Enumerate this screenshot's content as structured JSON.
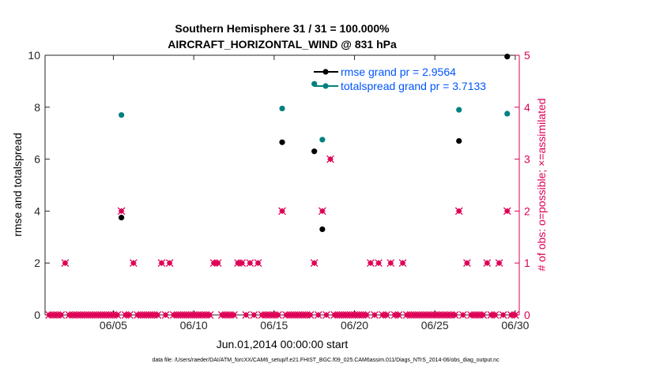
{
  "chart_data": {
    "type": "scatter",
    "title_line1": "Southern Hemisphere 31 / 31 = 100.000%",
    "title_line2": "AIRCRAFT_HORIZONTAL_WIND @ 831 hPa",
    "xlabel": "Jun.01,2014 00:00:00 start",
    "ylabel_left": "rmse and totalspread",
    "ylabel_right": "# of obs: o=possible; ×=assimilated",
    "xlim": [
      0.75,
      30.25
    ],
    "ylim_left": [
      0,
      10
    ],
    "ylim_right": [
      0,
      5
    ],
    "x_ticks": [
      5,
      10,
      15,
      20,
      25,
      30
    ],
    "x_tick_labels": [
      "06/05",
      "06/10",
      "06/15",
      "06/20",
      "06/25",
      "06/30"
    ],
    "y_ticks_left": [
      0,
      2,
      4,
      6,
      8,
      10
    ],
    "y_ticks_right": [
      0,
      1,
      2,
      3,
      4,
      5
    ],
    "colors": {
      "rmse": "#000000",
      "totalspread": "#008080",
      "obs": "#dd0055",
      "legend_text": "#0055ff"
    },
    "legend": [
      {
        "name": "rmse grand pr = 2.9564",
        "color": "#000000"
      },
      {
        "name": "totalspread grand pr = 3.7133",
        "color": "#008080"
      }
    ],
    "series": [
      {
        "name": "rmse",
        "axis": "left",
        "x": [
          5.5,
          15.5,
          17.5,
          18.0,
          26.5,
          29.5
        ],
        "y": [
          3.75,
          6.65,
          6.3,
          3.3,
          6.7,
          9.95
        ]
      },
      {
        "name": "totalspread",
        "axis": "left",
        "x": [
          5.5,
          15.5,
          17.5,
          18.0,
          26.5,
          29.5
        ],
        "y": [
          7.7,
          7.95,
          8.9,
          6.75,
          7.9,
          7.75
        ]
      },
      {
        "name": "obs_count",
        "axis": "right",
        "x": [
          1.0,
          1.25,
          1.5,
          1.75,
          2.0,
          2.25,
          2.5,
          2.75,
          3.0,
          3.25,
          3.5,
          3.75,
          4.0,
          4.25,
          4.5,
          4.75,
          5.0,
          5.25,
          5.5,
          5.75,
          6.0,
          6.25,
          6.5,
          6.75,
          7.0,
          7.25,
          7.5,
          7.75,
          8.0,
          8.25,
          8.5,
          8.75,
          9.0,
          9.25,
          9.5,
          9.75,
          10.0,
          10.25,
          10.5,
          10.75,
          11.0,
          11.25,
          11.5,
          11.75,
          12.0,
          12.25,
          12.5,
          12.75,
          13.0,
          13.25,
          13.5,
          13.75,
          14.0,
          14.25,
          14.5,
          14.75,
          15.0,
          15.25,
          15.5,
          15.75,
          16.0,
          16.25,
          16.5,
          16.75,
          17.0,
          17.25,
          17.5,
          17.75,
          18.0,
          18.25,
          18.5,
          18.75,
          19.0,
          19.25,
          19.5,
          19.75,
          20.0,
          20.25,
          20.5,
          20.75,
          21.0,
          21.25,
          21.5,
          21.75,
          22.0,
          22.25,
          22.5,
          22.75,
          23.0,
          23.25,
          23.5,
          23.75,
          24.0,
          24.25,
          24.5,
          24.75,
          25.0,
          25.25,
          25.5,
          25.75,
          26.0,
          26.25,
          26.5,
          26.75,
          27.0,
          27.25,
          27.5,
          27.75,
          28.0,
          28.25,
          28.5,
          28.75,
          29.0,
          29.25,
          29.5,
          29.75,
          30.0
        ],
        "y": [
          0,
          0,
          0,
          0,
          1,
          0,
          0,
          0,
          0,
          0,
          0,
          0,
          0,
          0,
          0,
          0,
          0,
          0,
          2,
          0,
          0,
          1,
          0,
          0,
          0,
          0,
          0,
          0,
          1,
          0,
          1,
          0,
          0,
          0,
          0,
          0,
          0,
          0,
          0,
          0,
          0,
          1,
          1,
          0,
          0,
          0,
          0,
          1,
          1,
          0,
          1,
          0,
          1,
          0,
          0,
          0,
          0,
          0,
          2,
          0,
          0,
          0,
          0,
          0,
          0,
          0,
          1,
          0,
          2,
          0,
          3,
          0,
          0,
          0,
          0,
          0,
          0,
          0,
          0,
          0,
          1,
          0,
          1,
          0,
          0,
          1,
          0,
          0,
          1,
          0,
          0,
          0,
          0,
          0,
          0,
          0,
          0,
          0,
          0,
          0,
          0,
          0,
          2,
          0,
          1,
          0,
          0,
          0,
          0,
          1,
          0,
          0,
          1,
          0,
          2,
          0,
          0
        ]
      }
    ],
    "footer": "data file: /Users/raeder/DAI/ATM_forcXX/CAM6_setup/f.e21.FHIST_BGC.f09_025.CAM6assim.011/Diags_NTrS_2014-06/obs_diag_output.nc"
  }
}
